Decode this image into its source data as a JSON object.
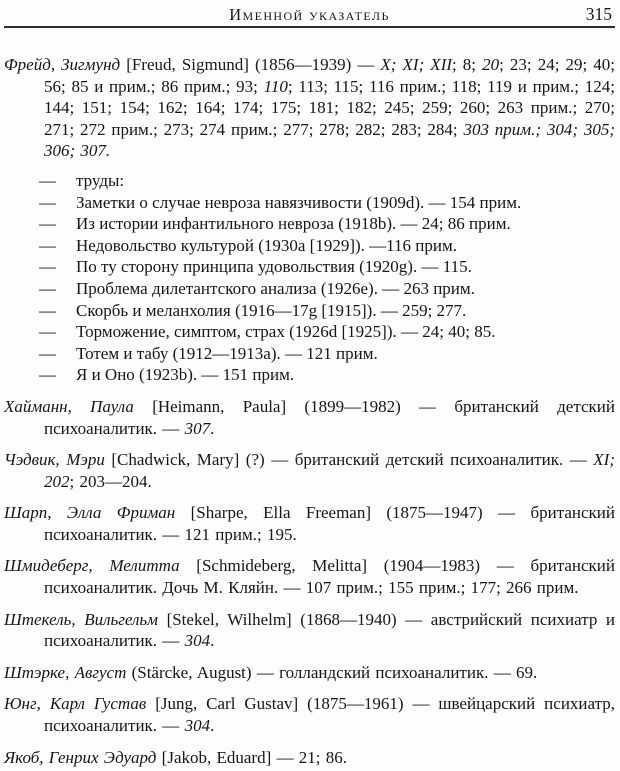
{
  "page": {
    "title": "Именной указатель",
    "page_number": "315",
    "text_color": "#161616",
    "background_color": "#fdfdfc",
    "work_marker": "—"
  },
  "index": {
    "entries": [
      {
        "kind": "main",
        "segments": [
          [
            "Фрейд, Зигмунд",
            "i"
          ],
          [
            " [Freud, Sigmund] (1856—1939) — ",
            "r"
          ],
          [
            "X; XI; XII",
            "i"
          ],
          [
            "; 8; ",
            "r"
          ],
          [
            "20",
            "i"
          ],
          [
            "; 23; 24; 29; 40; 56; 85 и прим.; 86 прим.; 93; ",
            "r"
          ],
          [
            "110",
            "i"
          ],
          [
            "; 113; 115; 116 прим.; 118; 119 и прим.; 124; 144; 151; 154; 162; 164; 174; 175; 181; 182; 245; 259; 260; 263 прим.; 270; 271; 272 прим.; 273; 274 прим.; 277; 278; 282; 283; 284; ",
            "r"
          ],
          [
            "303 прим.; 304; 305; 306; 307.",
            "i"
          ]
        ]
      },
      {
        "kind": "work",
        "segments": [
          [
            "труды:",
            "r"
          ]
        ]
      },
      {
        "kind": "work",
        "segments": [
          [
            "Заметки о случае невроза навязчивости (1909d). — 154 прим.",
            "r"
          ]
        ]
      },
      {
        "kind": "work",
        "segments": [
          [
            "Из истории инфантильного невроза (1918b). — 24; 86 прим.",
            "r"
          ]
        ]
      },
      {
        "kind": "work",
        "segments": [
          [
            "Недовольство культурой (1930a [1929]). —116 прим.",
            "r"
          ]
        ]
      },
      {
        "kind": "work",
        "segments": [
          [
            "По ту сторону принципа удовольствия (1920g). — 115.",
            "r"
          ]
        ]
      },
      {
        "kind": "work",
        "segments": [
          [
            "Проблема дилетантского анализа (1926e). — 263 прим.",
            "r"
          ]
        ]
      },
      {
        "kind": "work",
        "segments": [
          [
            "Скорбь и меланхолия (1916—17g [1915]). — 259; 277.",
            "r"
          ]
        ]
      },
      {
        "kind": "work",
        "segments": [
          [
            "Торможение, симптом, страх (1926d [1925]). — 24; 40; 85.",
            "r"
          ]
        ]
      },
      {
        "kind": "work",
        "segments": [
          [
            "Тотем и табу (1912—1913a). — 121 прим.",
            "r"
          ]
        ]
      },
      {
        "kind": "work",
        "segments": [
          [
            "Я и Оно (1923b). — 151 прим.",
            "r"
          ]
        ]
      },
      {
        "kind": "main",
        "segments": [
          [
            "Хайманн, Паула",
            "i"
          ],
          [
            " [Heimann, Paula] (1899—1982) — британский детский психоаналитик. — ",
            "r"
          ],
          [
            "307",
            "i"
          ],
          [
            ".",
            "r"
          ]
        ]
      },
      {
        "kind": "main",
        "segments": [
          [
            "Чэдвик, Мэри",
            "i"
          ],
          [
            " [Chadwick, Mary] (?) — британский детский психоаналитик. — ",
            "r"
          ],
          [
            "XI; 202",
            "i"
          ],
          [
            "; 203—204.",
            "r"
          ]
        ]
      },
      {
        "kind": "main",
        "segments": [
          [
            "Шарп, Элла Фриман",
            "i"
          ],
          [
            " [Sharpe, Ella Freeman] (1875—1947) — британский психоаналитик. — 121 прим.; 195.",
            "r"
          ]
        ]
      },
      {
        "kind": "main",
        "segments": [
          [
            "Шмидеберг, Мелитта",
            "i"
          ],
          [
            " [Schmideberg, Melitta] (1904—1983) — британский психоаналитик. Дочь М. Кляйн. — 107 прим.; 155 прим.; 177; 266 прим.",
            "r"
          ]
        ]
      },
      {
        "kind": "main",
        "segments": [
          [
            "Штекель, Вильгельм",
            "i"
          ],
          [
            " [Stekel, Wilhelm] (1868—1940) — австрийский психиатр и психоаналитик. — ",
            "r"
          ],
          [
            "304",
            "i"
          ],
          [
            ".",
            "r"
          ]
        ]
      },
      {
        "kind": "main",
        "segments": [
          [
            "Штэрке, Август",
            "i"
          ],
          [
            " (Stärcke, August) — голландский психоаналитик. — 69.",
            "r"
          ]
        ]
      },
      {
        "kind": "main",
        "segments": [
          [
            "Юнг, Карл Густав",
            "i"
          ],
          [
            " [Jung, Carl Gustav] (1875—1961) — швейцарский психиатр, психоаналитик. — ",
            "r"
          ],
          [
            "304",
            "i"
          ],
          [
            ".",
            "r"
          ]
        ]
      },
      {
        "kind": "main",
        "segments": [
          [
            "Якоб, Генрих Эдуард",
            "i"
          ],
          [
            " [Jakob, Eduard] — 21; 86.",
            "r"
          ]
        ]
      }
    ]
  }
}
